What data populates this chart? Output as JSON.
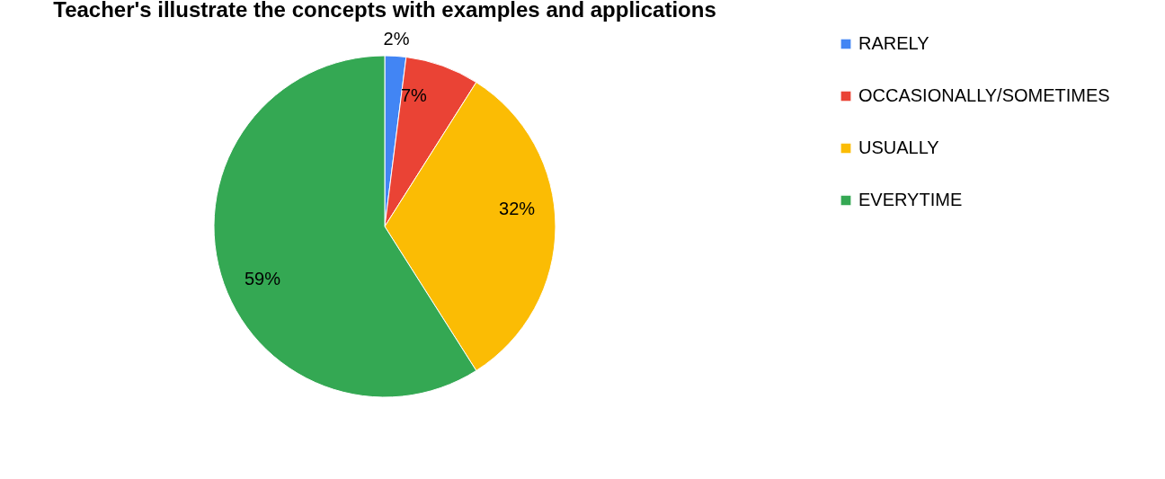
{
  "chart_data": {
    "type": "pie",
    "title": "Teacher's illustrate the concepts with examples and applications",
    "categories": [
      "RARELY",
      "OCCASIONALLY/SOMETIMES",
      "USUALLY",
      "EVERYTIME"
    ],
    "values": [
      2,
      7,
      32,
      59
    ],
    "colors": [
      "#4285f4",
      "#ea4335",
      "#fbbc04",
      "#34a853"
    ],
    "value_labels": [
      "2%",
      "7%",
      "32%",
      "59%"
    ],
    "legend": "right"
  }
}
